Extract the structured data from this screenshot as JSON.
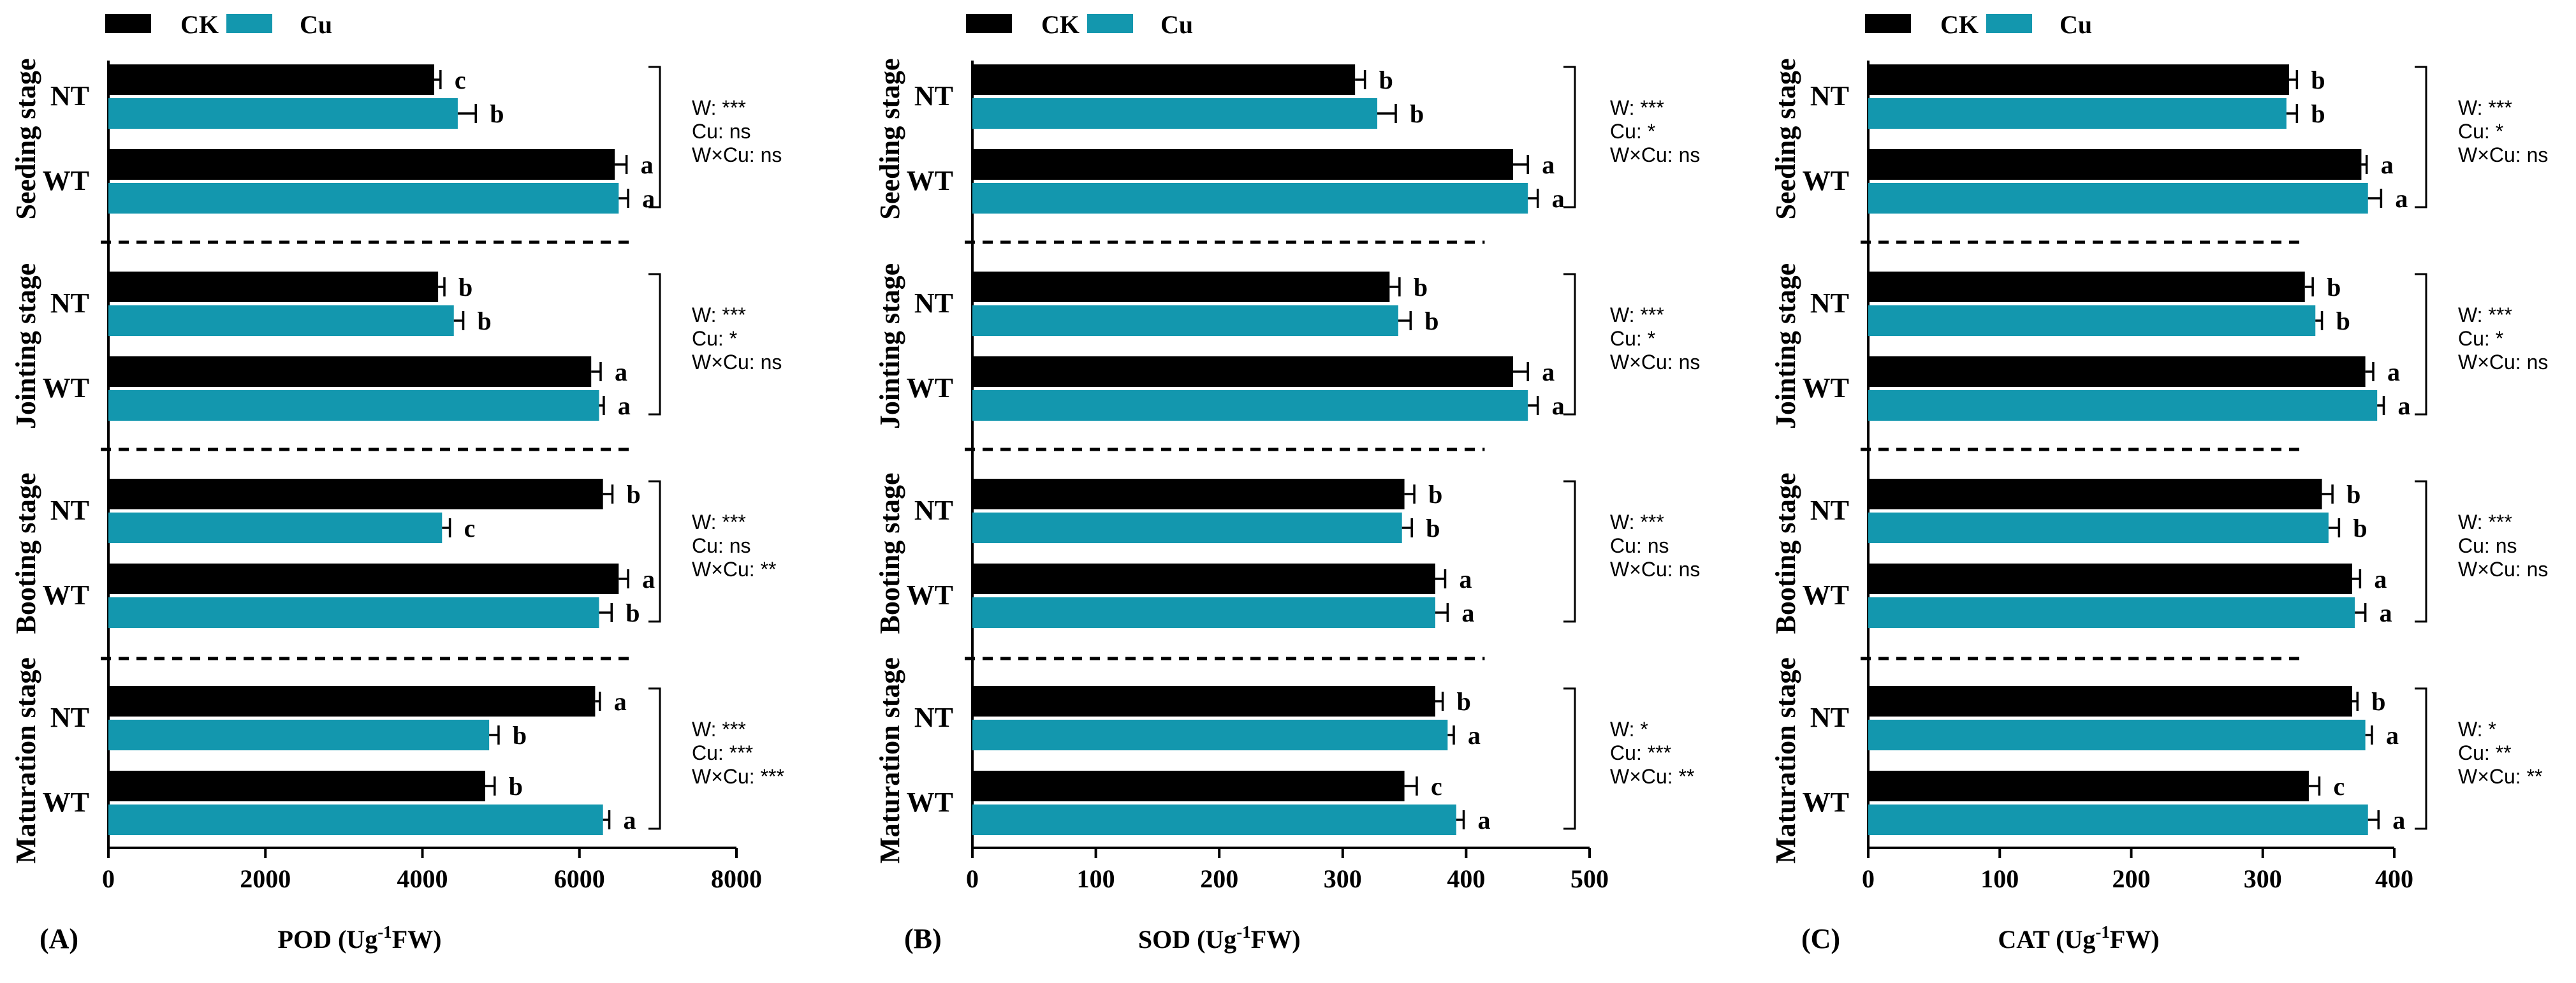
{
  "legend": {
    "labels": [
      "CK",
      "Cu"
    ]
  },
  "colors": {
    "CK": "#000000",
    "Cu": "#1397ae"
  },
  "stages": [
    "Seeding stage",
    "Jointing stage",
    "Booting stage",
    "Maturation stage"
  ],
  "genotypes": [
    "NT",
    "WT"
  ],
  "chart_data": [
    {
      "type": "bar",
      "panel": "(A)",
      "xlabel": "POD (Ug-1FW)",
      "xlabel_parts": {
        "pre": "POD (Ug",
        "sup": "-1",
        "post": "FW)"
      },
      "xlim": [
        0,
        8000
      ],
      "xticks": [
        0,
        2000,
        4000,
        6000,
        8000
      ],
      "groups": [
        {
          "stage": "Seeding stage",
          "genotype": "NT",
          "CK": {
            "value": 4150,
            "err": 80,
            "label": "c"
          },
          "Cu": {
            "value": 4450,
            "err": 230,
            "label": "b"
          }
        },
        {
          "stage": "Seeding stage",
          "genotype": "WT",
          "CK": {
            "value": 6450,
            "err": 150,
            "label": "a"
          },
          "Cu": {
            "value": 6500,
            "err": 120,
            "label": "a"
          }
        },
        {
          "stage": "Jointing stage",
          "genotype": "NT",
          "CK": {
            "value": 4200,
            "err": 80,
            "label": "b"
          },
          "Cu": {
            "value": 4400,
            "err": 120,
            "label": "b"
          }
        },
        {
          "stage": "Jointing stage",
          "genotype": "WT",
          "CK": {
            "value": 6150,
            "err": 120,
            "label": "a"
          },
          "Cu": {
            "value": 6250,
            "err": 60,
            "label": "a"
          }
        },
        {
          "stage": "Booting stage",
          "genotype": "NT",
          "CK": {
            "value": 6300,
            "err": 120,
            "label": "b"
          },
          "Cu": {
            "value": 4250,
            "err": 100,
            "label": "c"
          }
        },
        {
          "stage": "Booting stage",
          "genotype": "WT",
          "CK": {
            "value": 6500,
            "err": 120,
            "label": "a"
          },
          "Cu": {
            "value": 6250,
            "err": 160,
            "label": "b"
          }
        },
        {
          "stage": "Maturation stage",
          "genotype": "NT",
          "CK": {
            "value": 6200,
            "err": 60,
            "label": "a"
          },
          "Cu": {
            "value": 4850,
            "err": 120,
            "label": "b"
          }
        },
        {
          "stage": "Maturation stage",
          "genotype": "WT",
          "CK": {
            "value": 4800,
            "err": 120,
            "label": "b"
          },
          "Cu": {
            "value": 6300,
            "err": 80,
            "label": "a"
          }
        }
      ],
      "stats": [
        [
          "W: ***",
          "Cu: ns",
          "W×Cu: ns"
        ],
        [
          "W: ***",
          "Cu: *",
          "W×Cu: ns"
        ],
        [
          "W: ***",
          "Cu: ns",
          "W×Cu: **"
        ],
        [
          "W: ***",
          "Cu: ***",
          "W×Cu: ***"
        ]
      ]
    },
    {
      "type": "bar",
      "panel": "(B)",
      "xlabel": "SOD (Ug-1FW)",
      "xlabel_parts": {
        "pre": "SOD (Ug",
        "sup": "-1",
        "post": "FW)"
      },
      "xlim": [
        0,
        500
      ],
      "xticks": [
        0,
        100,
        200,
        300,
        400,
        500
      ],
      "groups": [
        {
          "stage": "Seeding stage",
          "genotype": "NT",
          "CK": {
            "value": 310,
            "err": 8,
            "label": "b"
          },
          "Cu": {
            "value": 328,
            "err": 15,
            "label": "b"
          }
        },
        {
          "stage": "Seeding stage",
          "genotype": "WT",
          "CK": {
            "value": 438,
            "err": 12,
            "label": "a"
          },
          "Cu": {
            "value": 450,
            "err": 8,
            "label": "a"
          }
        },
        {
          "stage": "Jointing stage",
          "genotype": "NT",
          "CK": {
            "value": 338,
            "err": 8,
            "label": "b"
          },
          "Cu": {
            "value": 345,
            "err": 10,
            "label": "b"
          }
        },
        {
          "stage": "Jointing stage",
          "genotype": "WT",
          "CK": {
            "value": 438,
            "err": 12,
            "label": "a"
          },
          "Cu": {
            "value": 450,
            "err": 8,
            "label": "a"
          }
        },
        {
          "stage": "Booting stage",
          "genotype": "NT",
          "CK": {
            "value": 350,
            "err": 8,
            "label": "b"
          },
          "Cu": {
            "value": 348,
            "err": 8,
            "label": "b"
          }
        },
        {
          "stage": "Booting stage",
          "genotype": "WT",
          "CK": {
            "value": 375,
            "err": 8,
            "label": "a"
          },
          "Cu": {
            "value": 375,
            "err": 10,
            "label": "a"
          }
        },
        {
          "stage": "Maturation stage",
          "genotype": "NT",
          "CK": {
            "value": 375,
            "err": 6,
            "label": "b"
          },
          "Cu": {
            "value": 385,
            "err": 5,
            "label": "a"
          }
        },
        {
          "stage": "Maturation stage",
          "genotype": "WT",
          "CK": {
            "value": 350,
            "err": 10,
            "label": "c"
          },
          "Cu": {
            "value": 392,
            "err": 6,
            "label": "a"
          }
        }
      ],
      "stats": [
        [
          "W: ***",
          "Cu: *",
          "W×Cu: ns"
        ],
        [
          "W: ***",
          "Cu: *",
          "W×Cu: ns"
        ],
        [
          "W: ***",
          "Cu: ns",
          "W×Cu: ns"
        ],
        [
          "W: *",
          "Cu: ***",
          "W×Cu: **"
        ]
      ]
    },
    {
      "type": "bar",
      "panel": "(C)",
      "xlabel": "CAT (Ug-1FW)",
      "xlabel_parts": {
        "pre": "CAT (Ug",
        "sup": "-1",
        "post": "FW)"
      },
      "xlim": [
        0,
        400
      ],
      "xticks": [
        0,
        100,
        200,
        300,
        400
      ],
      "groups": [
        {
          "stage": "Seeding stage",
          "genotype": "NT",
          "CK": {
            "value": 320,
            "err": 6,
            "label": "b"
          },
          "Cu": {
            "value": 318,
            "err": 8,
            "label": "b"
          }
        },
        {
          "stage": "Seeding stage",
          "genotype": "WT",
          "CK": {
            "value": 375,
            "err": 4,
            "label": "a"
          },
          "Cu": {
            "value": 380,
            "err": 10,
            "label": "a"
          }
        },
        {
          "stage": "Jointing stage",
          "genotype": "NT",
          "CK": {
            "value": 332,
            "err": 6,
            "label": "b"
          },
          "Cu": {
            "value": 340,
            "err": 5,
            "label": "b"
          }
        },
        {
          "stage": "Jointing stage",
          "genotype": "WT",
          "CK": {
            "value": 378,
            "err": 6,
            "label": "a"
          },
          "Cu": {
            "value": 387,
            "err": 5,
            "label": "a"
          }
        },
        {
          "stage": "Booting stage",
          "genotype": "NT",
          "CK": {
            "value": 345,
            "err": 8,
            "label": "b"
          },
          "Cu": {
            "value": 350,
            "err": 8,
            "label": "b"
          }
        },
        {
          "stage": "Booting stage",
          "genotype": "WT",
          "CK": {
            "value": 368,
            "err": 6,
            "label": "a"
          },
          "Cu": {
            "value": 370,
            "err": 8,
            "label": "a"
          }
        },
        {
          "stage": "Maturation stage",
          "genotype": "NT",
          "CK": {
            "value": 368,
            "err": 4,
            "label": "b"
          },
          "Cu": {
            "value": 378,
            "err": 5,
            "label": "a"
          }
        },
        {
          "stage": "Maturation stage",
          "genotype": "WT",
          "CK": {
            "value": 335,
            "err": 8,
            "label": "c"
          },
          "Cu": {
            "value": 380,
            "err": 8,
            "label": "a"
          }
        }
      ],
      "stats": [
        [
          "W: ***",
          "Cu: *",
          "W×Cu: ns"
        ],
        [
          "W: ***",
          "Cu: *",
          "W×Cu: ns"
        ],
        [
          "W: ***",
          "Cu: ns",
          "W×Cu: ns"
        ],
        [
          "W: *",
          "Cu: **",
          "W×Cu: **"
        ]
      ]
    }
  ]
}
